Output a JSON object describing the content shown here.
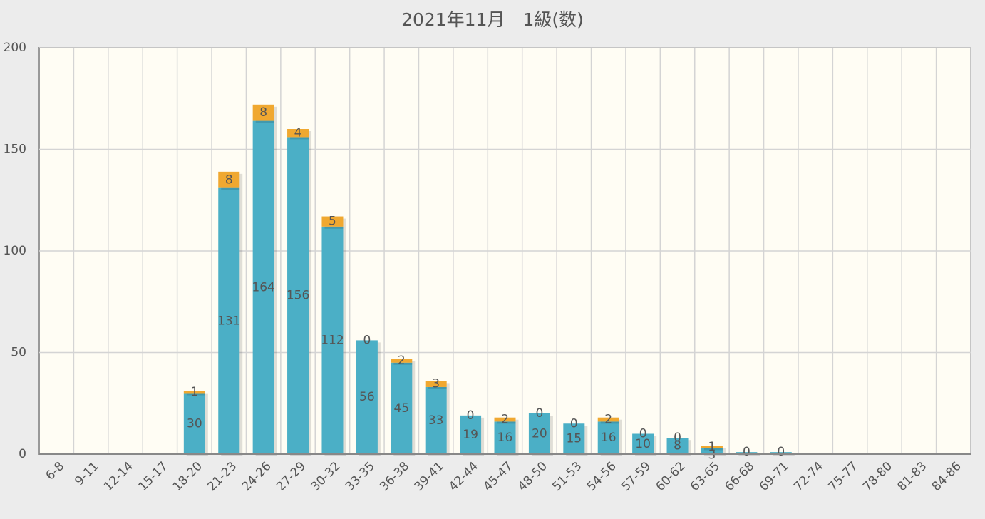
{
  "chart_data": {
    "type": "stacked_bar",
    "title": "2021年11月　1級(数)",
    "categories": [
      "6-8",
      "9-11",
      "12-14",
      "15-17",
      "18-20",
      "21-23",
      "24-26",
      "27-29",
      "30-32",
      "33-35",
      "36-38",
      "39-41",
      "42-44",
      "45-47",
      "48-50",
      "51-53",
      "54-56",
      "57-59",
      "60-62",
      "63-65",
      "66-68",
      "69-71",
      "72-74",
      "75-77",
      "78-80",
      "81-83",
      "84-86"
    ],
    "series": [
      {
        "color": "#4bafc6",
        "values": [
          null,
          null,
          null,
          null,
          30,
          131,
          164,
          156,
          112,
          56,
          45,
          33,
          19,
          16,
          20,
          15,
          16,
          10,
          8,
          3,
          1,
          1,
          null,
          null,
          null,
          null,
          null
        ],
        "value_labels": [
          null,
          null,
          null,
          null,
          "30",
          "131",
          "164",
          "156",
          "112",
          "56",
          "45",
          "33",
          "19",
          "16",
          "20",
          "15",
          "16",
          "10",
          "8",
          "3",
          null,
          null,
          null,
          null,
          null,
          null,
          null
        ]
      },
      {
        "color": "#f0a830",
        "values": [
          null,
          null,
          null,
          null,
          1,
          8,
          8,
          4,
          5,
          0,
          2,
          3,
          0,
          2,
          0,
          0,
          2,
          0,
          0,
          1,
          0,
          0,
          null,
          null,
          null,
          null,
          null
        ]
      }
    ],
    "ylim": [
      0,
      200
    ],
    "yticks": [
      0,
      50,
      100,
      150,
      200
    ],
    "grid": true
  }
}
